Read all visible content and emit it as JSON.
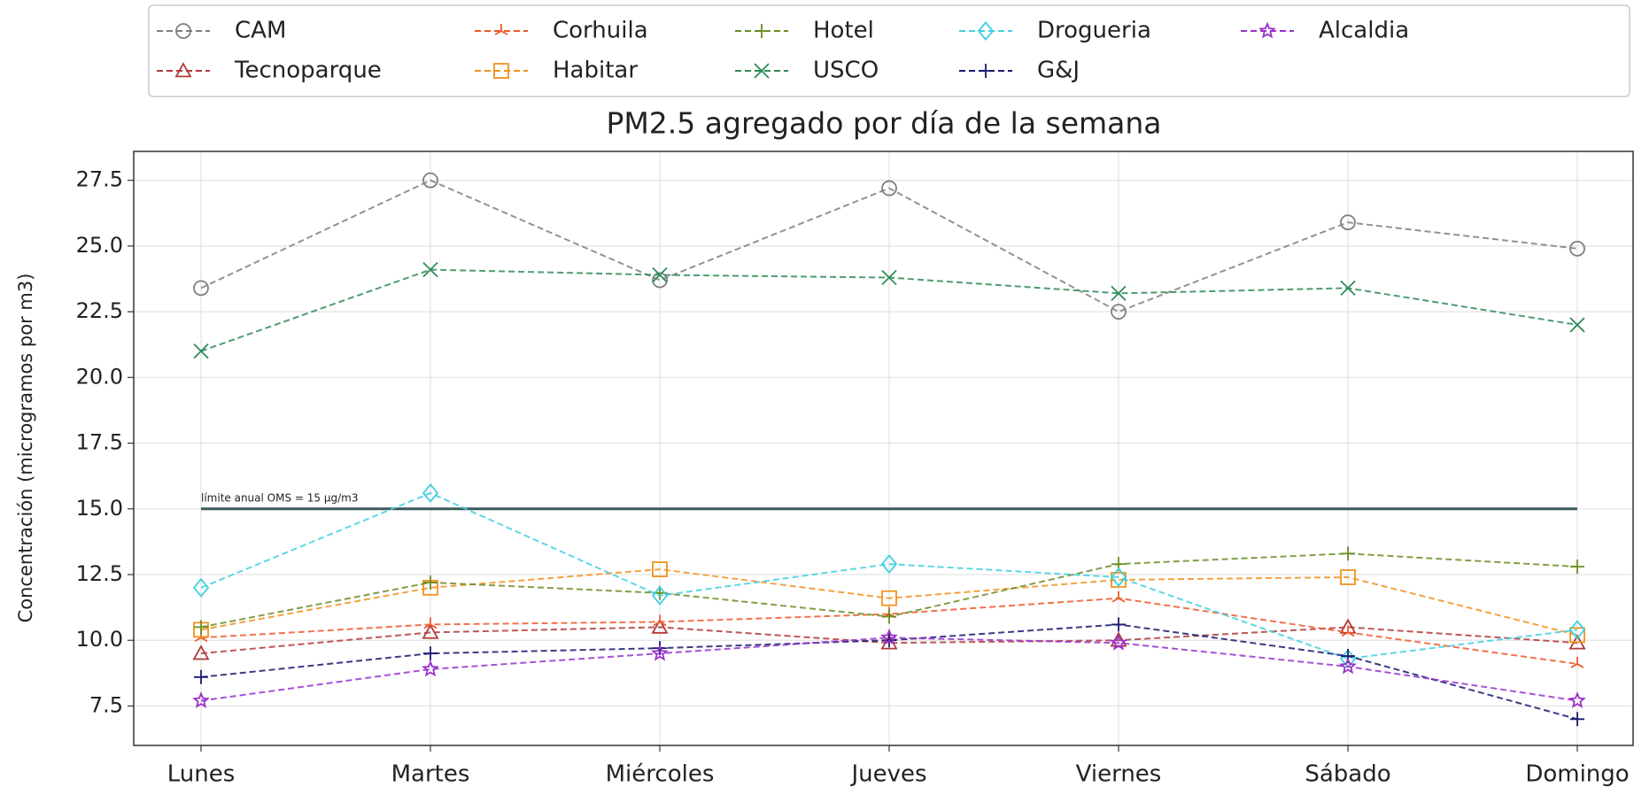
{
  "chart_data": {
    "type": "line",
    "title": "PM2.5 agregado por día de la semana",
    "ylabel": "Concentración (microgramos por m3)",
    "categories": [
      "Lunes",
      "Martes",
      "Miércoles",
      "Jueves",
      "Viernes",
      "Sábado",
      "Domingo"
    ],
    "ylim": [
      6.0,
      28.6
    ],
    "yticks": [
      7.5,
      {
        "value": 10,
        "label": "10.0"
      },
      12.5,
      {
        "value": 15,
        "label": "15.0"
      },
      17.5,
      {
        "value": 20,
        "label": "20.0"
      },
      22.5,
      {
        "value": 25,
        "label": "25.0"
      },
      27.5
    ],
    "grid": true,
    "legend": "top",
    "reference_line": {
      "value": 15,
      "label": "límite anual OMS = 15 µg/m3",
      "color": "#3b5a5e"
    },
    "series": [
      {
        "name": "CAM",
        "color": "#7f7f7f",
        "marker": "o",
        "values": [
          23.4,
          27.5,
          23.7,
          27.2,
          22.5,
          25.9,
          24.9
        ]
      },
      {
        "name": "Tecnoparque",
        "color": "#b03a3a",
        "marker": "^",
        "values": [
          9.5,
          10.3,
          10.5,
          9.9,
          10.0,
          10.5,
          9.9
        ]
      },
      {
        "name": "Corhuila",
        "color": "#ee5a2c",
        "marker": "tri",
        "values": [
          10.1,
          10.6,
          10.7,
          11.0,
          11.6,
          10.3,
          9.1
        ]
      },
      {
        "name": "Habitar",
        "color": "#f0921e",
        "marker": "s",
        "values": [
          10.4,
          12.0,
          12.7,
          11.6,
          12.3,
          12.4,
          10.2
        ]
      },
      {
        "name": "Hotel",
        "color": "#6b8e23",
        "marker": "+",
        "values": [
          10.5,
          12.2,
          11.8,
          10.9,
          12.9,
          13.3,
          12.8
        ]
      },
      {
        "name": "USCO",
        "color": "#2e8b57",
        "marker": "x",
        "values": [
          21.0,
          24.1,
          23.9,
          23.8,
          23.2,
          23.4,
          22.0
        ]
      },
      {
        "name": "Drogueria",
        "color": "#3fd0e0",
        "marker": "D",
        "values": [
          12.0,
          15.6,
          11.7,
          12.9,
          12.4,
          9.3,
          10.4
        ]
      },
      {
        "name": "G&J",
        "color": "#191970",
        "marker": "+",
        "values": [
          8.6,
          9.5,
          9.7,
          10.0,
          10.6,
          9.4,
          7.0
        ]
      },
      {
        "name": "Alcaldia",
        "color": "#9932cc",
        "marker": "*",
        "values": [
          7.7,
          8.9,
          9.5,
          10.1,
          9.9,
          9.0,
          7.7
        ]
      }
    ]
  }
}
